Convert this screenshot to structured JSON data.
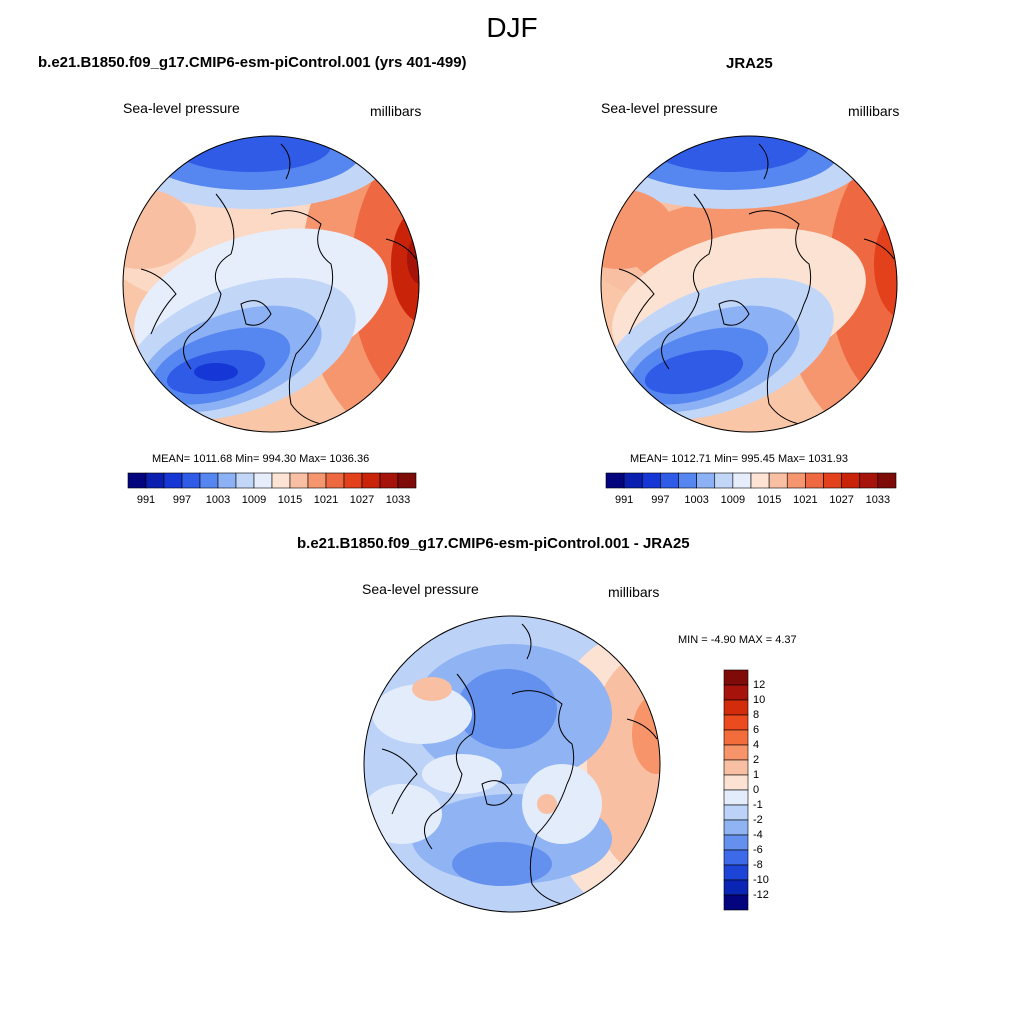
{
  "figure_title": "DJF",
  "panels": {
    "model": {
      "title": "b.e21.B1850.f09_g17.CMIP6-esm-piControl.001 (yrs 401-499)",
      "variable": "Sea-level pressure",
      "units": "millibars",
      "stats": "MEAN= 1011.68  Min= 994.30  Max= 1036.36"
    },
    "obs": {
      "title": "JRA25",
      "variable": "Sea-level pressure",
      "units": "millibars",
      "stats": "MEAN= 1012.71  Min= 995.45  Max= 1031.93"
    },
    "diff": {
      "title": "b.e21.B1850.f09_g17.CMIP6-esm-piControl.001 - JRA25",
      "variable": "Sea-level pressure",
      "units": "millibars",
      "stats": "MIN =  -4.90 MAX =   4.37"
    }
  },
  "colorbars": {
    "slp": {
      "labels": [
        "991",
        "997",
        "1003",
        "1009",
        "1015",
        "1021",
        "1027",
        "1033"
      ],
      "colors": [
        "#04047f",
        "#0a1fb0",
        "#1637d6",
        "#2f5be6",
        "#5686ef",
        "#8db1f5",
        "#c2d6f8",
        "#e6eefb",
        "#fce3d3",
        "#f9bfa3",
        "#f5966f",
        "#ee6941",
        "#e3401c",
        "#c9230a",
        "#a5130a",
        "#7e0b08"
      ]
    },
    "diff": {
      "labels": [
        "12",
        "10",
        "8",
        "6",
        "4",
        "2",
        "1",
        "0",
        "-1",
        "-2",
        "-4",
        "-6",
        "-8",
        "-10",
        "-12"
      ],
      "colors": [
        "#7e0b08",
        "#a5130a",
        "#d22c0c",
        "#ec4a1f",
        "#f36c3b",
        "#f7946a",
        "#f9bfa3",
        "#fbe2d2",
        "#e3ecfb",
        "#bcd2f7",
        "#8fb3f3",
        "#6490ee",
        "#3d6ae8",
        "#1c44d6",
        "#0a24b4",
        "#04047f"
      ]
    }
  }
}
